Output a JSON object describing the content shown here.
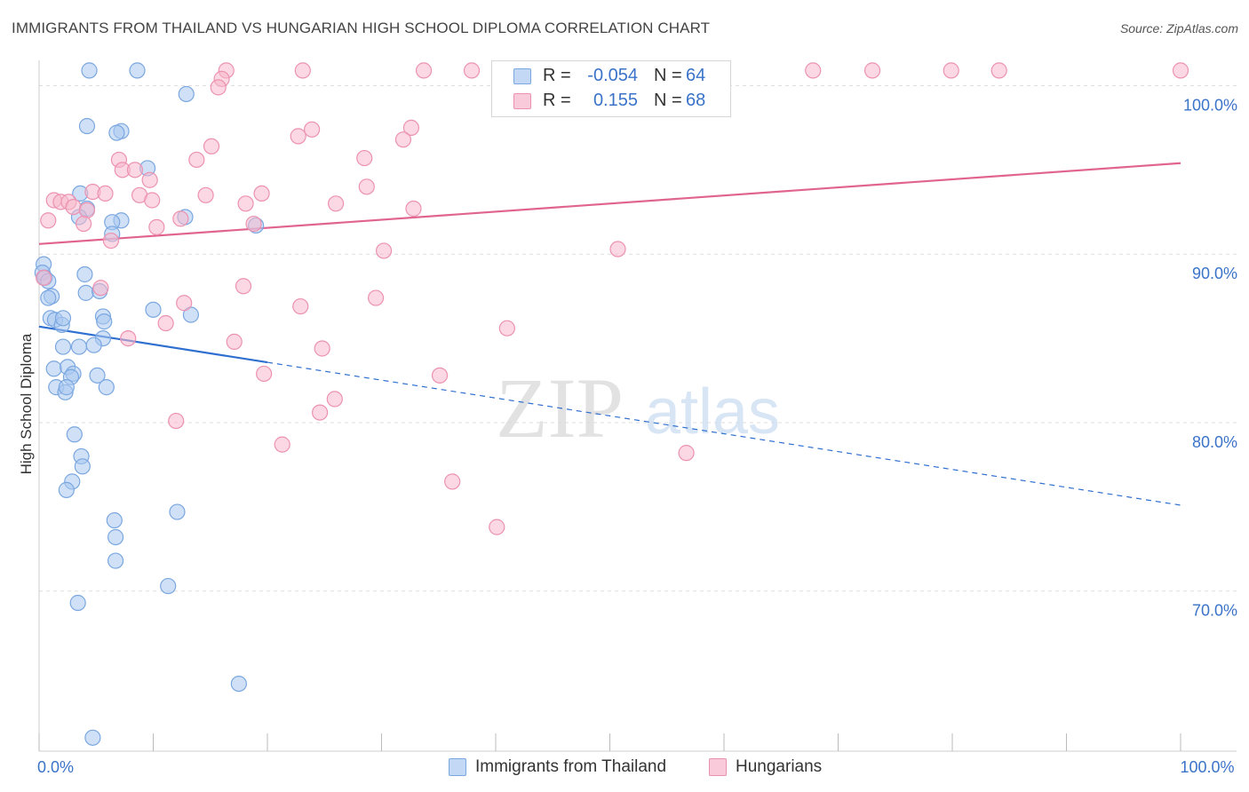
{
  "title": "IMMIGRANTS FROM THAILAND VS HUNGARIAN HIGH SCHOOL DIPLOMA CORRELATION CHART",
  "source": "Source: ZipAtlas.com",
  "watermark": {
    "zip": "ZIP",
    "atlas": "atlas"
  },
  "colors": {
    "blue_fill": "#a9c8f0",
    "blue_stroke": "#7aa7e0",
    "blue_line": "#2f6fd0",
    "pink_fill": "#f7b8cc",
    "pink_stroke": "#ec92b0",
    "pink_line": "#e0648f",
    "tick_label": "#3a73c8",
    "grid": "#dddddd"
  },
  "legend_top": [
    {
      "r_label": "R =",
      "r_value": "-0.054",
      "n_label": "N =",
      "n_value": "64",
      "series": "blue"
    },
    {
      "r_label": "R =",
      "r_value": "0.155",
      "n_label": "N =",
      "n_value": "68",
      "series": "pink"
    }
  ],
  "legend_bottom": [
    {
      "label": "Immigrants from Thailand",
      "series": "blue"
    },
    {
      "label": "Hungarians",
      "series": "pink"
    }
  ],
  "chart_data": {
    "type": "scatter",
    "ylabel": "High School Diploma",
    "xlabel": "",
    "xlim": [
      0,
      100
    ],
    "ylim": [
      60.5,
      101.5
    ],
    "x_tick_labels": [
      {
        "value": 0,
        "label": "0.0%"
      },
      {
        "value": 100,
        "label": "100.0%"
      }
    ],
    "y_tick_labels": [
      {
        "value": 100,
        "label": "100.0%"
      },
      {
        "value": 90,
        "label": "90.0%"
      },
      {
        "value": 80,
        "label": "80.0%"
      },
      {
        "value": 70,
        "label": "70.0%"
      }
    ],
    "x_minor_ticks": [
      0,
      10,
      20,
      30,
      40,
      50,
      60,
      70,
      80,
      90,
      100
    ],
    "series": [
      {
        "name": "Immigrants from Thailand",
        "color": "blue",
        "R": -0.054,
        "N": 64,
        "trend": {
          "x0": 0,
          "y0": 85.7,
          "x1": 100,
          "y1": 75.1,
          "solid_until_x": 20
        },
        "points": [
          [
            4.4,
            100.9
          ],
          [
            8.6,
            100.9
          ],
          [
            12.9,
            99.5
          ],
          [
            4.2,
            97.6
          ],
          [
            7.2,
            97.3
          ],
          [
            6.8,
            97.2
          ],
          [
            9.5,
            95.1
          ],
          [
            3.6,
            93.6
          ],
          [
            4.2,
            92.7
          ],
          [
            3.5,
            92.2
          ],
          [
            7.2,
            92.0
          ],
          [
            12.8,
            92.2
          ],
          [
            6.4,
            91.9
          ],
          [
            19.0,
            91.7
          ],
          [
            6.4,
            91.2
          ],
          [
            0.4,
            89.4
          ],
          [
            0.3,
            88.9
          ],
          [
            0.5,
            88.6
          ],
          [
            4.0,
            88.8
          ],
          [
            0.8,
            88.4
          ],
          [
            1.1,
            87.5
          ],
          [
            0.8,
            87.4
          ],
          [
            4.1,
            87.7
          ],
          [
            5.3,
            87.8
          ],
          [
            10.0,
            86.7
          ],
          [
            1.0,
            86.2
          ],
          [
            1.4,
            86.1
          ],
          [
            2.0,
            85.8
          ],
          [
            2.1,
            86.2
          ],
          [
            5.6,
            86.3
          ],
          [
            5.7,
            86.0
          ],
          [
            13.3,
            86.4
          ],
          [
            5.6,
            85.0
          ],
          [
            2.1,
            84.5
          ],
          [
            3.5,
            84.5
          ],
          [
            4.8,
            84.6
          ],
          [
            1.3,
            83.2
          ],
          [
            2.5,
            83.3
          ],
          [
            3.0,
            82.9
          ],
          [
            2.8,
            82.7
          ],
          [
            5.1,
            82.8
          ],
          [
            1.5,
            82.1
          ],
          [
            2.3,
            81.8
          ],
          [
            5.9,
            82.1
          ],
          [
            2.4,
            82.1
          ],
          [
            3.1,
            79.3
          ],
          [
            3.7,
            78.0
          ],
          [
            3.8,
            77.4
          ],
          [
            2.9,
            76.5
          ],
          [
            2.4,
            76.0
          ],
          [
            12.1,
            74.7
          ],
          [
            6.6,
            74.2
          ],
          [
            6.7,
            73.2
          ],
          [
            6.7,
            71.8
          ],
          [
            11.3,
            70.3
          ],
          [
            3.4,
            69.3
          ],
          [
            17.5,
            64.5
          ],
          [
            4.7,
            61.3
          ]
        ]
      },
      {
        "name": "Hungarians",
        "color": "pink",
        "R": 0.155,
        "N": 68,
        "trend": {
          "x0": 0,
          "y0": 90.6,
          "x1": 100,
          "y1": 95.4
        },
        "points": [
          [
            16.4,
            100.9
          ],
          [
            23.1,
            100.9
          ],
          [
            33.7,
            100.9
          ],
          [
            37.9,
            100.9
          ],
          [
            53.6,
            100.9
          ],
          [
            67.8,
            100.9
          ],
          [
            73.0,
            100.9
          ],
          [
            79.9,
            100.9
          ],
          [
            84.1,
            100.9
          ],
          [
            100.0,
            100.9
          ],
          [
            16.0,
            100.4
          ],
          [
            15.7,
            99.9
          ],
          [
            23.9,
            97.4
          ],
          [
            22.7,
            97.0
          ],
          [
            32.6,
            97.5
          ],
          [
            31.9,
            96.8
          ],
          [
            15.1,
            96.4
          ],
          [
            13.8,
            95.6
          ],
          [
            7.0,
            95.6
          ],
          [
            28.5,
            95.7
          ],
          [
            7.3,
            95.0
          ],
          [
            8.4,
            95.0
          ],
          [
            9.7,
            94.4
          ],
          [
            28.7,
            94.0
          ],
          [
            4.7,
            93.7
          ],
          [
            5.8,
            93.6
          ],
          [
            14.6,
            93.5
          ],
          [
            19.5,
            93.6
          ],
          [
            8.8,
            93.5
          ],
          [
            9.9,
            93.2
          ],
          [
            1.3,
            93.2
          ],
          [
            1.9,
            93.1
          ],
          [
            2.6,
            93.1
          ],
          [
            3.0,
            92.8
          ],
          [
            4.2,
            92.6
          ],
          [
            18.1,
            93.0
          ],
          [
            26.0,
            93.0
          ],
          [
            32.8,
            92.7
          ],
          [
            12.4,
            92.1
          ],
          [
            0.8,
            92.0
          ],
          [
            3.9,
            91.8
          ],
          [
            10.3,
            91.6
          ],
          [
            18.8,
            91.8
          ],
          [
            6.3,
            90.8
          ],
          [
            30.2,
            90.2
          ],
          [
            50.7,
            90.3
          ],
          [
            0.4,
            88.6
          ],
          [
            5.4,
            88.0
          ],
          [
            17.9,
            88.1
          ],
          [
            29.5,
            87.4
          ],
          [
            12.7,
            87.1
          ],
          [
            22.9,
            86.9
          ],
          [
            11.1,
            85.9
          ],
          [
            41.0,
            85.6
          ],
          [
            7.8,
            85.0
          ],
          [
            17.1,
            84.8
          ],
          [
            24.8,
            84.4
          ],
          [
            19.7,
            82.9
          ],
          [
            35.1,
            82.8
          ],
          [
            25.9,
            81.4
          ],
          [
            24.6,
            80.6
          ],
          [
            12.0,
            80.1
          ],
          [
            21.3,
            78.7
          ],
          [
            56.7,
            78.2
          ],
          [
            36.2,
            76.5
          ],
          [
            40.1,
            73.8
          ]
        ]
      }
    ]
  }
}
